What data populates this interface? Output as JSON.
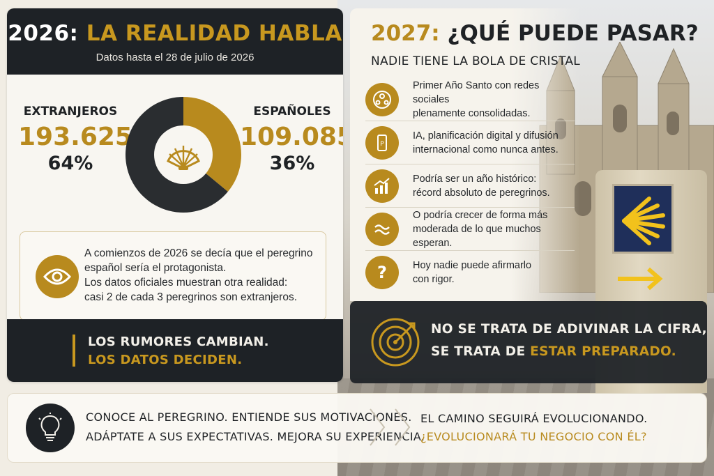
{
  "left": {
    "title_a": "2026:",
    "title_b": "LA REALIDAD HABLA",
    "subtitle": "Datos hasta el 28 de julio de 2026",
    "foreign": {
      "label": "EXTRANJEROS",
      "value": "193.625",
      "pct": "64%"
    },
    "spanish": {
      "label": "ESPAÑOLES",
      "value": "109.085",
      "pct": "36%"
    },
    "note_lines": [
      "A comienzos de 2026 se decía que el peregrino",
      "español sería el protagonista.",
      "Los datos oficiales muestran otra realidad:",
      "casi 2 de cada 3 peregrinos son extranjeros."
    ],
    "footer_1": "LOS RUMORES CAMBIAN.",
    "footer_2": "LOS DATOS DECIDEN."
  },
  "chart_data": {
    "type": "pie",
    "categories": [
      "EXTRANJEROS",
      "ESPAÑOLES"
    ],
    "values": [
      193625,
      109085
    ],
    "colors": [
      "#2a2d30",
      "#b88a1e"
    ],
    "donut": true
  },
  "right": {
    "title_a": "2027:",
    "title_b": "¿QUÉ PUEDE PASAR?",
    "subtitle": "NADIE TIENE LA BOLA DE CRISTAL",
    "items": [
      {
        "icon": "people-network-icon",
        "line1": "Primer Año Santo con redes sociales",
        "line2": "plenamente consolidadas."
      },
      {
        "icon": "smartphone-icon",
        "line1": "IA, planificación digital y difusión",
        "line2": "internacional como nunca antes."
      },
      {
        "icon": "growth-chart-icon",
        "line1": "Podría ser un año histórico:",
        "line2": "récord absoluto de peregrinos."
      },
      {
        "icon": "wave-icon",
        "line1": "O podría crecer de forma más",
        "line2": "moderada de lo que muchos esperan."
      },
      {
        "icon": "question-icon",
        "line1": "Hoy nadie puede afirmarlo",
        "line2": "con rigor."
      }
    ],
    "target_1": "NO SE TRATA DE ADIVINAR LA CIFRA,",
    "target_2a": "SE TRATA DE",
    "target_2b": "ESTAR PREPARADO."
  },
  "banner": {
    "line_1": "CONOCE AL PEREGRINO. ENTIENDE SUS MOTIVACIONES.",
    "line_2": "ADÁPTATE A SUS EXPECTATIVAS. MEJORA SU EXPERIENCIA.",
    "line_3": "EL CAMINO SEGUIRÁ EVOLUCIONANDO.",
    "line_4": "¿EVOLUCIONARÁ TU NEGOCIO CON ÉL?"
  }
}
